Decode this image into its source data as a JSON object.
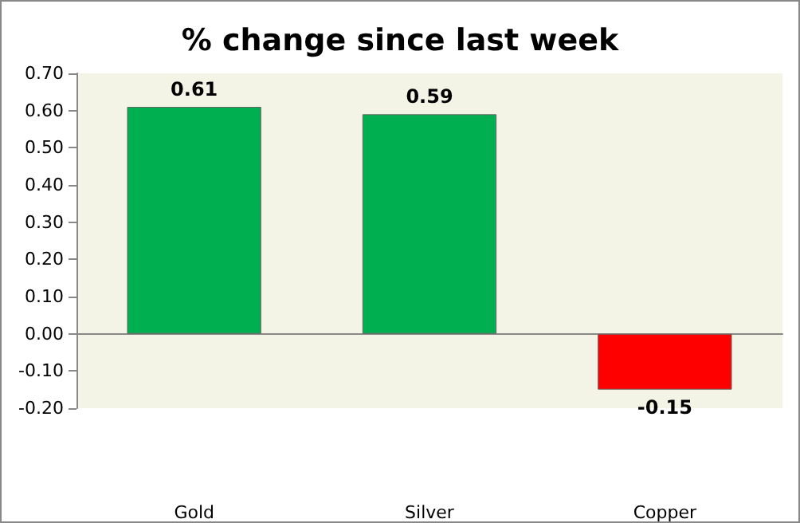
{
  "chart_data": {
    "type": "bar",
    "title": "% change since last week",
    "categories": [
      "Gold",
      "Silver",
      "Copper"
    ],
    "values": [
      0.61,
      0.59,
      -0.15
    ],
    "colors": [
      "#00b050",
      "#00b050",
      "#ff0000"
    ],
    "ylim": [
      -0.2,
      0.7
    ],
    "yticks": [
      {
        "value": -0.2,
        "label": "-0.20"
      },
      {
        "value": -0.1,
        "label": "-0.10"
      },
      {
        "value": 0,
        "label": "0.00"
      },
      {
        "value": 0.1,
        "label": "0.10"
      },
      {
        "value": 0.2,
        "label": "0.20"
      },
      {
        "value": 0.3,
        "label": "0.30"
      },
      {
        "value": 0.4,
        "label": "0.40"
      },
      {
        "value": 0.5,
        "label": "0.50"
      },
      {
        "value": 0.6,
        "label": "0.60"
      },
      {
        "value": 0.7,
        "label": "0.70"
      }
    ],
    "data_labels": true
  }
}
